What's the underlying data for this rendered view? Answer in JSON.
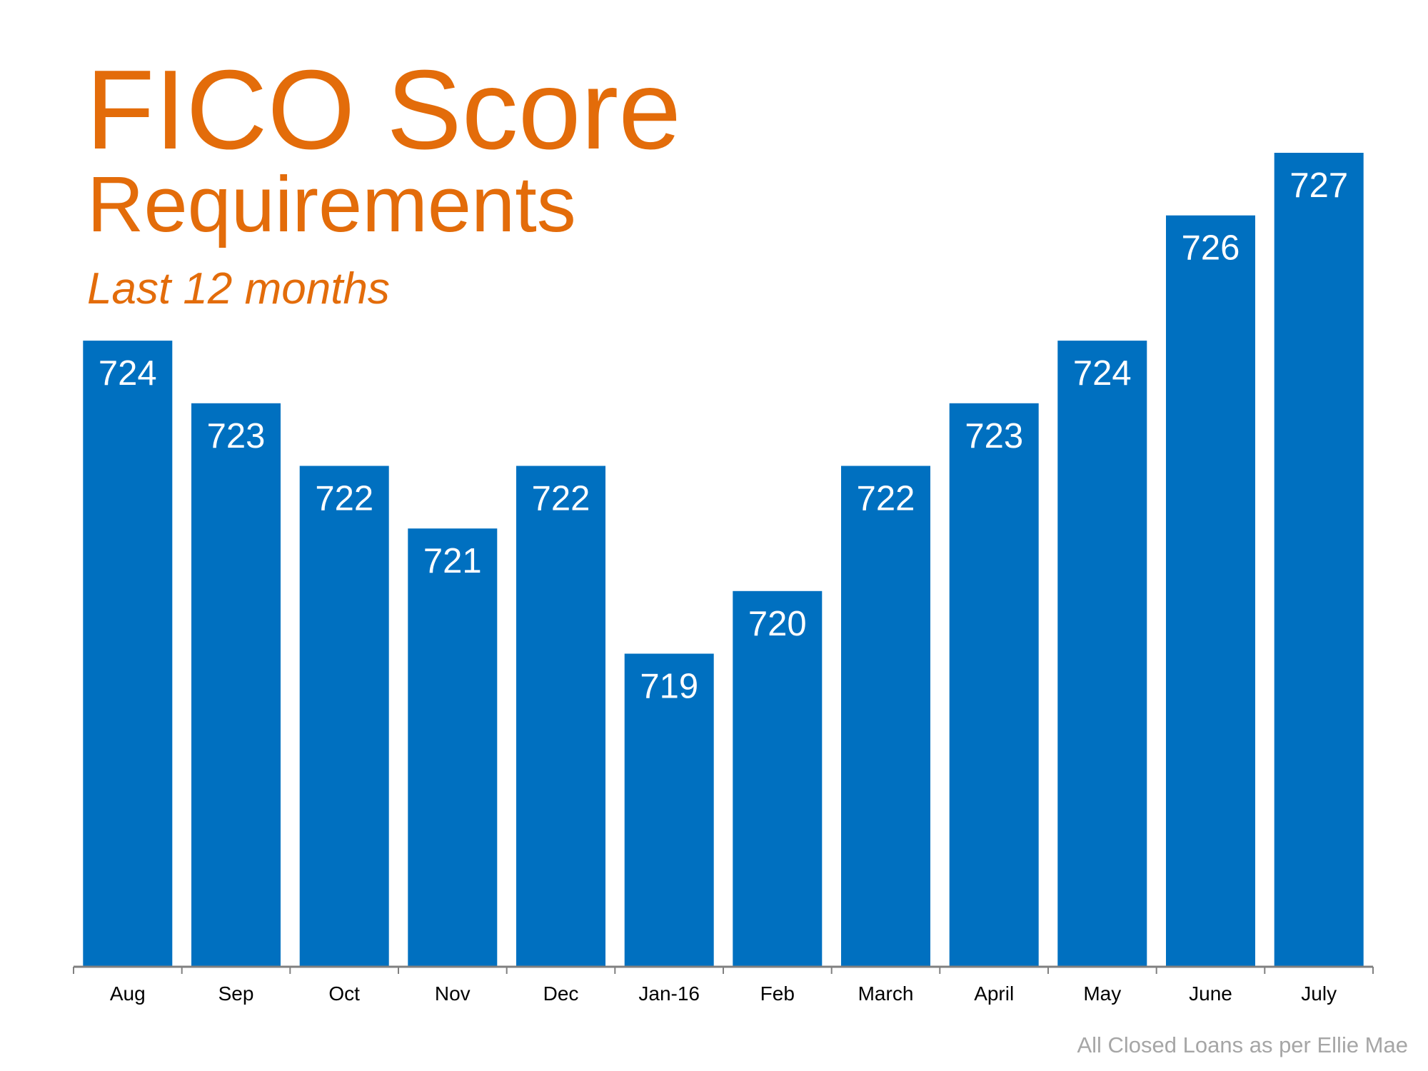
{
  "colors": {
    "title": "#E36C0A",
    "bar": "#0070C0",
    "bar_label": "#FFFFFF",
    "axis": "#808080",
    "tick_label": "#000000",
    "source": "#A6A6A6"
  },
  "chart_data": {
    "type": "bar",
    "title": "FICO Score",
    "subtitle": "Requirements",
    "period": "Last 12 months",
    "categories": [
      "Aug",
      "Sep",
      "Oct",
      "Nov",
      "Dec",
      "Jan-16",
      "Feb",
      "March",
      "April",
      "May",
      "June",
      "July"
    ],
    "values": [
      724,
      723,
      722,
      721,
      722,
      719,
      720,
      722,
      723,
      724,
      726,
      727
    ],
    "data_labels": true,
    "ylim": [
      714,
      727
    ],
    "y_axis_visible": false,
    "grid": false,
    "legend": "none"
  },
  "footer": {
    "source": "All Closed Loans as per Ellie Mae"
  }
}
